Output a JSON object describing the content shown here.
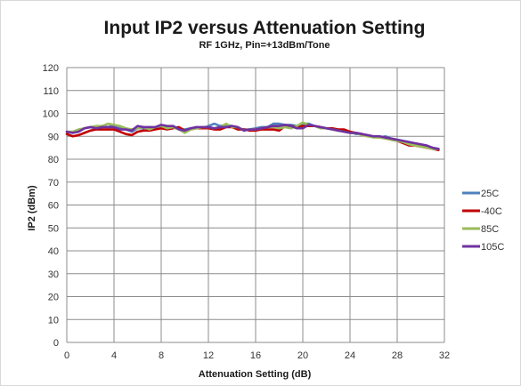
{
  "chart_data": {
    "type": "line",
    "title": "Input IP2 versus Attenuation Setting",
    "subtitle": "RF 1GHz, Pin=+13dBm/Tone",
    "xlabel": "Attenuation Setting (dB)",
    "ylabel": "IP2 (dBm)",
    "xlim": [
      0,
      32
    ],
    "ylim": [
      0,
      120
    ],
    "xticks": [
      0,
      4,
      8,
      12,
      16,
      20,
      24,
      28,
      32
    ],
    "yticks": [
      0,
      10,
      20,
      30,
      40,
      50,
      60,
      70,
      80,
      90,
      100,
      110,
      120
    ],
    "grid": true,
    "legend_position": "right",
    "x": [
      0,
      0.5,
      1,
      1.5,
      2,
      2.5,
      3,
      3.5,
      4,
      4.5,
      5,
      5.5,
      6,
      6.5,
      7,
      7.5,
      8,
      8.5,
      9,
      9.5,
      10,
      10.5,
      11,
      11.5,
      12,
      12.5,
      13,
      13.5,
      14,
      14.5,
      15,
      15.5,
      16,
      16.5,
      17,
      17.5,
      18,
      18.5,
      19,
      19.5,
      20,
      20.5,
      21,
      21.5,
      22,
      22.5,
      23,
      23.5,
      24,
      24.5,
      25,
      25.5,
      26,
      26.5,
      27,
      27.5,
      28,
      28.5,
      29,
      29.5,
      30,
      30.5,
      31,
      31.5
    ],
    "series": [
      {
        "name": "25C",
        "color": "#4f81bd",
        "values": [
          92,
          91.5,
          92.5,
          93.5,
          94,
          94,
          94.5,
          94,
          95,
          94,
          93,
          92,
          93.5,
          93.5,
          94,
          93.5,
          94.5,
          94,
          94.5,
          93,
          93,
          93.5,
          94,
          93.5,
          94.5,
          95.5,
          94.5,
          95,
          94.5,
          93.5,
          93,
          93,
          93.5,
          94,
          94,
          95.5,
          95.5,
          95,
          95,
          94.5,
          95.5,
          95.5,
          94.5,
          94,
          93.5,
          93,
          92.5,
          92.5,
          92,
          91,
          91,
          90,
          90,
          89.5,
          90,
          89,
          88.5,
          88,
          87,
          86.5,
          86,
          85.5,
          85,
          84.5
        ]
      },
      {
        "name": "-40C",
        "color": "#c00000",
        "values": [
          91,
          90,
          90.5,
          91.5,
          92.5,
          93,
          93,
          93,
          93,
          92,
          91,
          90.5,
          92,
          92.5,
          92.5,
          93,
          93.5,
          93,
          93.5,
          94,
          92.5,
          93,
          93.5,
          93.5,
          93.5,
          93,
          93,
          94,
          94,
          93,
          93,
          92.5,
          92.5,
          93,
          93,
          93,
          92.5,
          94.5,
          94.5,
          94,
          94.5,
          94.5,
          94.5,
          94,
          93.5,
          93.5,
          93,
          93,
          92,
          91.5,
          91,
          90,
          90,
          89.5,
          89.5,
          88.5,
          88,
          87,
          86,
          86,
          85.5,
          85,
          84.5,
          84
        ]
      },
      {
        "name": "85C",
        "color": "#9bbb59",
        "values": [
          92,
          92,
          93,
          93.5,
          94,
          94.5,
          94.5,
          95.5,
          95,
          94.5,
          93.5,
          93,
          93.5,
          94,
          93,
          94,
          94.5,
          93.5,
          94,
          93,
          91.5,
          93,
          93.5,
          94,
          94,
          93.5,
          94,
          95.5,
          94,
          94,
          92.5,
          93,
          93,
          93.5,
          94,
          94,
          93.5,
          94,
          93.5,
          94.5,
          96,
          95,
          94.5,
          93.5,
          93.5,
          93,
          92.5,
          92,
          91.5,
          91.5,
          90.5,
          90,
          89.5,
          89.5,
          89,
          88.5,
          88,
          87.5,
          86.5,
          86,
          85.5,
          85,
          84.5,
          84.5
        ]
      },
      {
        "name": "105C",
        "color": "#7030a0",
        "values": [
          92,
          91.5,
          92,
          93.5,
          94,
          93.5,
          94,
          94,
          94,
          93,
          93,
          92.5,
          94.5,
          94,
          94,
          94,
          95,
          94.5,
          94.5,
          93,
          92.5,
          93.5,
          94,
          94,
          94,
          93.5,
          94,
          94,
          94.5,
          94,
          92.5,
          93,
          93,
          93.5,
          94,
          94.5,
          94.5,
          95,
          94.5,
          93.5,
          93.5,
          95,
          94.5,
          94,
          93.5,
          93,
          92.5,
          92,
          91.5,
          91.5,
          91,
          90.5,
          90,
          90,
          89.5,
          89,
          88.5,
          88,
          87.5,
          87,
          86.5,
          86,
          85,
          84.5
        ]
      }
    ]
  }
}
